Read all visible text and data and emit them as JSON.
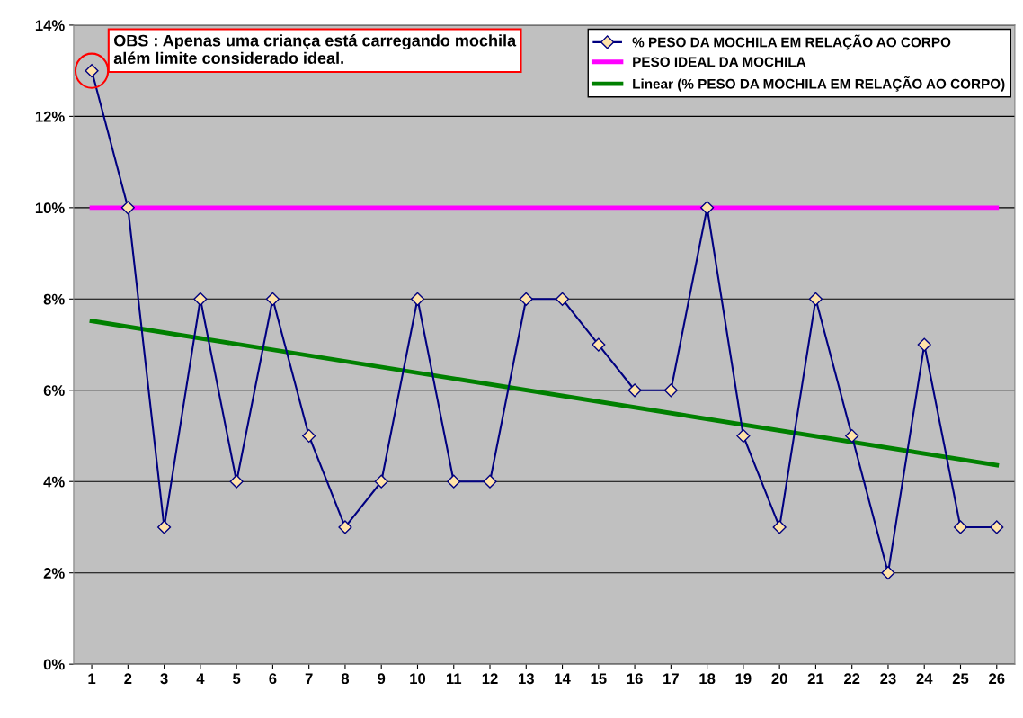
{
  "chart_data": {
    "type": "line",
    "x": [
      1,
      2,
      3,
      4,
      5,
      6,
      7,
      8,
      9,
      10,
      11,
      12,
      13,
      14,
      15,
      16,
      17,
      18,
      19,
      20,
      21,
      22,
      23,
      24,
      25,
      26
    ],
    "series": [
      {
        "name": "% PESO DA MOCHILA EM RELAÇÃO AO CORPO",
        "color": "#000080",
        "marker": "diamond",
        "values": [
          13,
          10,
          3,
          8,
          4,
          8,
          5,
          3,
          4,
          8,
          4,
          4,
          8,
          8,
          7,
          6,
          6,
          10,
          5,
          3,
          8,
          5,
          2,
          7,
          3,
          3
        ]
      },
      {
        "name": "PESO IDEAL DA MOCHILA",
        "color": "#ff00ff",
        "marker": "none",
        "values": [
          10,
          10,
          10,
          10,
          10,
          10,
          10,
          10,
          10,
          10,
          10,
          10,
          10,
          10,
          10,
          10,
          10,
          10,
          10,
          10,
          10,
          10,
          10,
          10,
          10,
          10
        ]
      },
      {
        "name": "Linear (% PESO DA MOCHILA EM RELAÇÃO AO CORPO)",
        "color": "#008000",
        "marker": "none",
        "x": [
          1,
          26
        ],
        "values": [
          7.52,
          4.36
        ]
      }
    ],
    "xlim": [
      0.5,
      26.5
    ],
    "xticks": [
      1,
      2,
      3,
      4,
      5,
      6,
      7,
      8,
      9,
      10,
      11,
      12,
      13,
      14,
      15,
      16,
      17,
      18,
      19,
      20,
      21,
      22,
      23,
      24,
      25,
      26
    ],
    "ylim": [
      0,
      14
    ],
    "yticks": [
      {
        "value": 0,
        "label": "0%"
      },
      {
        "value": 2,
        "label": "2%"
      },
      {
        "value": 4,
        "label": "4%"
      },
      {
        "value": 6,
        "label": "6%"
      },
      {
        "value": 8,
        "label": "8%"
      },
      {
        "value": 10,
        "label": "10%"
      },
      {
        "value": 12,
        "label": "12%"
      },
      {
        "value": 14,
        "label": "14%"
      }
    ],
    "grid": "y",
    "legend": "top right",
    "line_style": "solid",
    "annotations": [
      {
        "text": "OBS : Apenas uma criança está carregando mochila além limite considerado ideal.",
        "x": 1,
        "y": 13
      }
    ]
  }
}
